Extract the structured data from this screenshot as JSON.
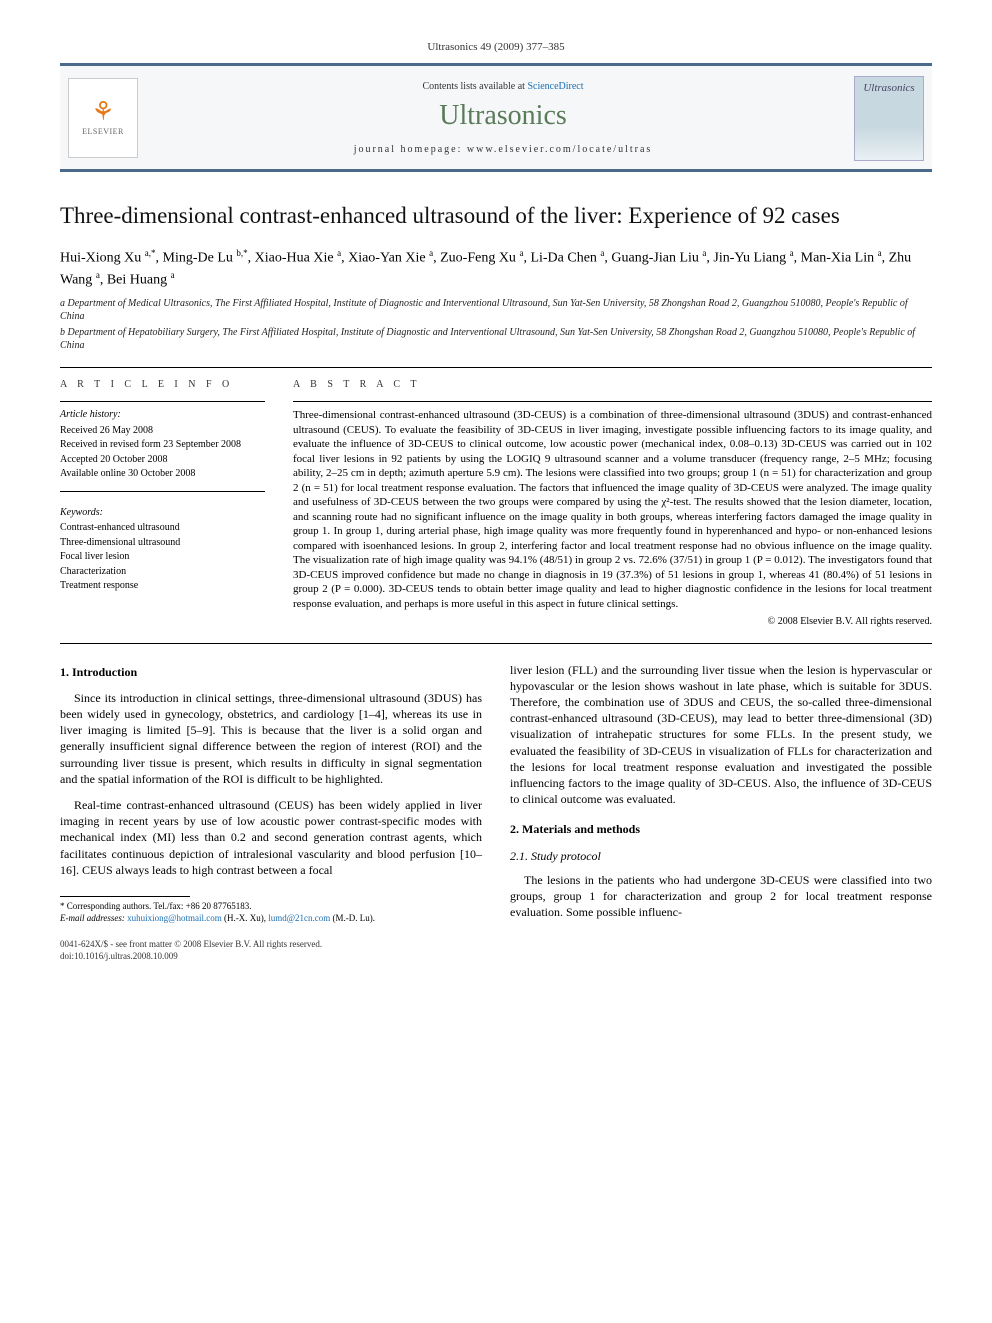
{
  "journal_ref": "Ultrasonics 49 (2009) 377–385",
  "header": {
    "publisher": "ELSEVIER",
    "contents_prefix": "Contents lists available at",
    "contents_link": "ScienceDirect",
    "journal": "Ultrasonics",
    "homepage_label": "journal homepage: www.elsevier.com/locate/ultras",
    "cover_label": "Ultrasonics"
  },
  "title": "Three-dimensional contrast-enhanced ultrasound of the liver: Experience of 92 cases",
  "authors_html": "Hui-Xiong Xu <span class='sup'>a,*</span>, Ming-De Lu <span class='sup'>b,*</span>, Xiao-Hua Xie <span class='sup'>a</span>, Xiao-Yan Xie <span class='sup'>a</span>, Zuo-Feng Xu <span class='sup'>a</span>, Li-Da Chen <span class='sup'>a</span>, Guang-Jian Liu <span class='sup'>a</span>, Jin-Yu Liang <span class='sup'>a</span>, Man-Xia Lin <span class='sup'>a</span>, Zhu Wang <span class='sup'>a</span>, Bei Huang <span class='sup'>a</span>",
  "affiliations": [
    "a Department of Medical Ultrasonics, The First Affiliated Hospital, Institute of Diagnostic and Interventional Ultrasound, Sun Yat-Sen University, 58 Zhongshan Road 2, Guangzhou 510080, People's Republic of China",
    "b Department of Hepatobiliary Surgery, The First Affiliated Hospital, Institute of Diagnostic and Interventional Ultrasound, Sun Yat-Sen University, 58 Zhongshan Road 2, Guangzhou 510080, People's Republic of China"
  ],
  "info": {
    "label": "A R T I C L E   I N F O",
    "history_label": "Article history:",
    "history": [
      "Received 26 May 2008",
      "Received in revised form 23 September 2008",
      "Accepted 20 October 2008",
      "Available online 30 October 2008"
    ],
    "keywords_label": "Keywords:",
    "keywords": [
      "Contrast-enhanced ultrasound",
      "Three-dimensional ultrasound",
      "Focal liver lesion",
      "Characterization",
      "Treatment response"
    ]
  },
  "abstract": {
    "label": "A B S T R A C T",
    "text": "Three-dimensional contrast-enhanced ultrasound (3D-CEUS) is a combination of three-dimensional ultrasound (3DUS) and contrast-enhanced ultrasound (CEUS). To evaluate the feasibility of 3D-CEUS in liver imaging, investigate possible influencing factors to its image quality, and evaluate the influence of 3D-CEUS to clinical outcome, low acoustic power (mechanical index, 0.08–0.13) 3D-CEUS was carried out in 102 focal liver lesions in 92 patients by using the LOGIQ 9 ultrasound scanner and a volume transducer (frequency range, 2–5 MHz; focusing ability, 2–25 cm in depth; azimuth aperture 5.9 cm). The lesions were classified into two groups; group 1 (n = 51) for characterization and group 2 (n = 51) for local treatment response evaluation. The factors that influenced the image quality of 3D-CEUS were analyzed. The image quality and usefulness of 3D-CEUS between the two groups were compared by using the χ²-test. The results showed that the lesion diameter, location, and scanning route had no significant influence on the image quality in both groups, whereas interfering factors damaged the image quality in group 1. In group 1, during arterial phase, high image quality was more frequently found in hyperenhanced and hypo- or non-enhanced lesions compared with isoenhanced lesions. In group 2, interfering factor and local treatment response had no obvious influence on the image quality. The visualization rate of high image quality was 94.1% (48/51) in group 2 vs. 72.6% (37/51) in group 1 (P = 0.012). The investigators found that 3D-CEUS improved confidence but made no change in diagnosis in 19 (37.3%) of 51 lesions in group 1, whereas 41 (80.4%) of 51 lesions in group 2 (P = 0.000). 3D-CEUS tends to obtain better image quality and lead to higher diagnostic confidence in the lesions for local treatment response evaluation, and perhaps is more useful in this aspect in future clinical settings.",
    "copyright": "© 2008 Elsevier B.V. All rights reserved."
  },
  "body": {
    "sec1_head": "1. Introduction",
    "para1": "Since its introduction in clinical settings, three-dimensional ultrasound (3DUS) has been widely used in gynecology, obstetrics, and cardiology [1–4], whereas its use in liver imaging is limited [5–9]. This is because that the liver is a solid organ and generally insufficient signal difference between the region of interest (ROI) and the surrounding liver tissue is present, which results in difficulty in signal segmentation and the spatial information of the ROI is difficult to be highlighted.",
    "para2": "Real-time contrast-enhanced ultrasound (CEUS) has been widely applied in liver imaging in recent years by use of low acoustic power contrast-specific modes with mechanical index (MI) less than 0.2 and second generation contrast agents, which facilitates continuous depiction of intralesional vascularity and blood perfusion [10–16]. CEUS always leads to high contrast between a focal",
    "para3": "liver lesion (FLL) and the surrounding liver tissue when the lesion is hypervascular or hypovascular or the lesion shows washout in late phase, which is suitable for 3DUS. Therefore, the combination use of 3DUS and CEUS, the so-called three-dimensional contrast-enhanced ultrasound (3D-CEUS), may lead to better three-dimensional (3D) visualization of intrahepatic structures for some FLLs. In the present study, we evaluated the feasibility of 3D-CEUS in visualization of FLLs for characterization and the lesions for local treatment response evaluation and investigated the possible influencing factors to the image quality of 3D-CEUS. Also, the influence of 3D-CEUS to clinical outcome was evaluated.",
    "sec2_head": "2. Materials and methods",
    "sec21_head": "2.1. Study protocol",
    "para4": "The lesions in the patients who had undergone 3D-CEUS were classified into two groups, group 1 for characterization and group 2 for local treatment response evaluation. Some possible influenc-"
  },
  "footnote": {
    "corr": "* Corresponding authors. Tel./fax: +86 20 87765183.",
    "emails_label": "E-mail addresses:",
    "email1": "xuhuixiong@hotmail.com",
    "email1_who": "(H.-X. Xu),",
    "email2": "lumd@21cn.com",
    "email2_who": "(M.-D. Lu)."
  },
  "doi": {
    "l1": "0041-624X/$ - see front matter © 2008 Elsevier B.V. All rights reserved.",
    "l2": "doi:10.1016/j.ultras.2008.10.009"
  },
  "colors": {
    "rule": "#4a6a8a",
    "journal_name": "#5a7a5a",
    "link": "#1b6fb3",
    "logo_orange": "#e67817"
  }
}
